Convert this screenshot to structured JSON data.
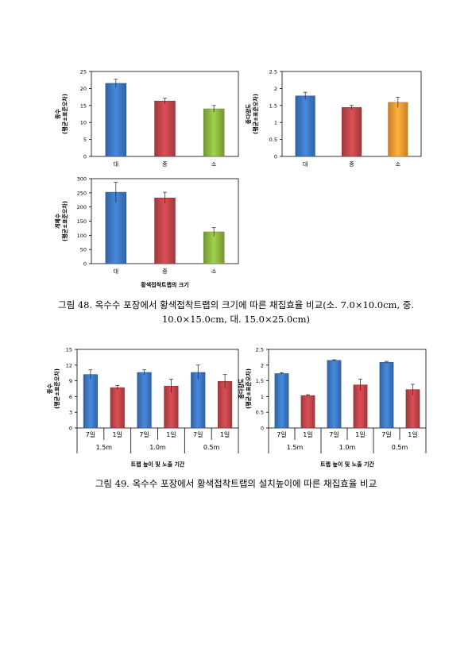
{
  "figure48": {
    "caption_line1": "그림 48. 옥수수 포장에서 황색접착트랩의 크기에 따른 채집효율 비교(소. 7.0×10.0cm, 중.",
    "caption_line2": "10.0×15.0cm, 대. 15.0×25.0cm)",
    "shared_xlabel": "황색접착트랩의 크기"
  },
  "figure49": {
    "caption": "그림 49. 옥수수 포장에서 황색접착트랩의 설치높이에 따른 채집효율 비교"
  },
  "chart_data": [
    {
      "type": "bar",
      "categories": [
        "대",
        "중",
        "소"
      ],
      "values": [
        21.5,
        16.3,
        14.0
      ],
      "errors": [
        1.2,
        0.8,
        1.0
      ],
      "colors": [
        "#3d78c2",
        "#c0454a",
        "#8db742"
      ],
      "ylabel_line1": "종수",
      "ylabel_line2": "(평균±표준오차)",
      "xlabel": "",
      "ylim": [
        0,
        25
      ],
      "yticks": [
        0,
        5,
        10,
        15,
        20,
        25
      ]
    },
    {
      "type": "bar",
      "categories": [
        "대",
        "중",
        "소"
      ],
      "values": [
        1.78,
        1.44,
        1.59
      ],
      "errors": [
        0.11,
        0.06,
        0.15
      ],
      "colors": [
        "#3d78c2",
        "#c0454a",
        "#f39a32"
      ],
      "ylabel_line1": "종다양도",
      "ylabel_line2": "(평균±표준오차)",
      "xlabel": "",
      "ylim": [
        0,
        2.5
      ],
      "yticks": [
        "0",
        "0.5",
        "1",
        "1.5",
        "2",
        "2.5"
      ]
    },
    {
      "type": "bar",
      "categories": [
        "대",
        "중",
        "소"
      ],
      "values": [
        252,
        232,
        112
      ],
      "errors": [
        35,
        20,
        15
      ],
      "colors": [
        "#3d78c2",
        "#c0454a",
        "#8db742"
      ],
      "ylabel_line1": "개체수",
      "ylabel_line2": "(평균±표준오차)",
      "xlabel": "황색접착트랩의 크기",
      "ylim": [
        0,
        300
      ],
      "yticks": [
        0,
        50,
        100,
        150,
        200,
        250,
        300
      ]
    },
    {
      "type": "bar",
      "categories": [
        "7일",
        "1일",
        "7일",
        "1일",
        "7일",
        "1일"
      ],
      "groups": [
        "1.5m",
        "1.0m",
        "0.5m"
      ],
      "values": [
        10.2,
        7.7,
        10.6,
        8.0,
        10.6,
        8.9
      ],
      "errors": [
        0.9,
        0.4,
        0.5,
        1.3,
        1.4,
        1.3
      ],
      "colors": [
        "#3d78c2",
        "#c0454a",
        "#3d78c2",
        "#c0454a",
        "#3d78c2",
        "#c0454a"
      ],
      "ylabel_line1": "종수",
      "ylabel_line2": "(평균±표준오차)",
      "xlabel": "트랩 높이 및 노출 기간",
      "ylim": [
        0,
        15
      ],
      "yticks": [
        0,
        3,
        6,
        9,
        12,
        15
      ]
    },
    {
      "type": "bar",
      "categories": [
        "7일",
        "1일",
        "7일",
        "1일",
        "7일",
        "1일"
      ],
      "groups": [
        "1.5m",
        "1.0m",
        "0.5m"
      ],
      "values": [
        1.73,
        1.03,
        2.15,
        1.37,
        2.09,
        1.22
      ],
      "errors": [
        0.03,
        0.03,
        0.02,
        0.18,
        0.03,
        0.17
      ],
      "colors": [
        "#3d78c2",
        "#c0454a",
        "#3d78c2",
        "#c0454a",
        "#3d78c2",
        "#c0454a"
      ],
      "ylabel_line1": "종다양도",
      "ylabel_line2": "(평균±표준오차)",
      "xlabel": "트랩 높이 및 노출 기간",
      "ylim": [
        0,
        2.5
      ],
      "yticks": [
        "0",
        "0.5",
        "1",
        "1.5",
        "2",
        "2.5"
      ]
    }
  ]
}
